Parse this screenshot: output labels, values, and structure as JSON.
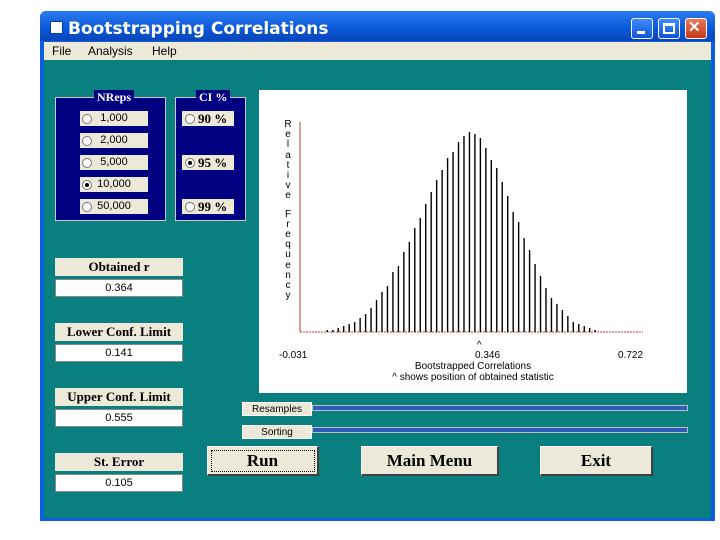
{
  "window": {
    "title": "Bootstrapping Correlations"
  },
  "menu": [
    "File",
    "Analysis",
    "Help"
  ],
  "nreps": {
    "title": "NReps",
    "options": [
      "1,000",
      "2,000",
      "5,000",
      "10,000",
      "50,000"
    ],
    "selected": "10,000"
  },
  "ci": {
    "title": "CI %",
    "options": [
      "90 %",
      "95 %",
      "99 %"
    ],
    "selected": "95 %"
  },
  "stats": [
    {
      "label": "Obtained r",
      "value": "0.364"
    },
    {
      "label": "Lower Conf. Limit",
      "value": "0.141"
    },
    {
      "label": "Upper Conf. Limit",
      "value": "0.555"
    },
    {
      "label": "St. Error",
      "value": "0.105"
    }
  ],
  "progress": {
    "resamples_label": "Resamples",
    "sorting_label": "Sorting",
    "resamples_fraction": 1.0,
    "sorting_fraction": 1.0
  },
  "buttons": {
    "run": "Run",
    "main_menu": "Main Menu",
    "exit": "Exit"
  },
  "chart_data": {
    "type": "bar",
    "ylabel": "Relative Frequency",
    "xlabel": "Bootstrapped Correlations",
    "note": "^ shows position of obtained statistic",
    "marker": "^",
    "xticks": [
      "-0.031",
      "0.346",
      "0.722"
    ],
    "xlim": [
      -0.031,
      0.722
    ],
    "obtained": 0.364,
    "bars_x": [
      0.029,
      0.041,
      0.053,
      0.065,
      0.077,
      0.089,
      0.101,
      0.113,
      0.125,
      0.137,
      0.149,
      0.161,
      0.173,
      0.185,
      0.197,
      0.209,
      0.221,
      0.233,
      0.245,
      0.257,
      0.269,
      0.281,
      0.293,
      0.305,
      0.317,
      0.329,
      0.341,
      0.353,
      0.365,
      0.377,
      0.389,
      0.401,
      0.413,
      0.425,
      0.437,
      0.449,
      0.461,
      0.473,
      0.485,
      0.497,
      0.509,
      0.521,
      0.533,
      0.545,
      0.557,
      0.569,
      0.581,
      0.593,
      0.605,
      0.617
    ],
    "bars_y": [
      0.01,
      0.01,
      0.02,
      0.03,
      0.04,
      0.05,
      0.07,
      0.09,
      0.12,
      0.16,
      0.2,
      0.23,
      0.3,
      0.33,
      0.4,
      0.45,
      0.52,
      0.57,
      0.64,
      0.7,
      0.76,
      0.81,
      0.87,
      0.9,
      0.95,
      0.98,
      1.0,
      0.99,
      0.97,
      0.92,
      0.86,
      0.82,
      0.75,
      0.68,
      0.6,
      0.55,
      0.47,
      0.41,
      0.34,
      0.28,
      0.22,
      0.17,
      0.14,
      0.11,
      0.08,
      0.05,
      0.04,
      0.03,
      0.02,
      0.01
    ],
    "ylim": [
      0,
      1
    ]
  },
  "colors": {
    "client_bg": "#0a7f7f",
    "title_blue": "#0a5ee0",
    "frame_navy": "#000080"
  }
}
